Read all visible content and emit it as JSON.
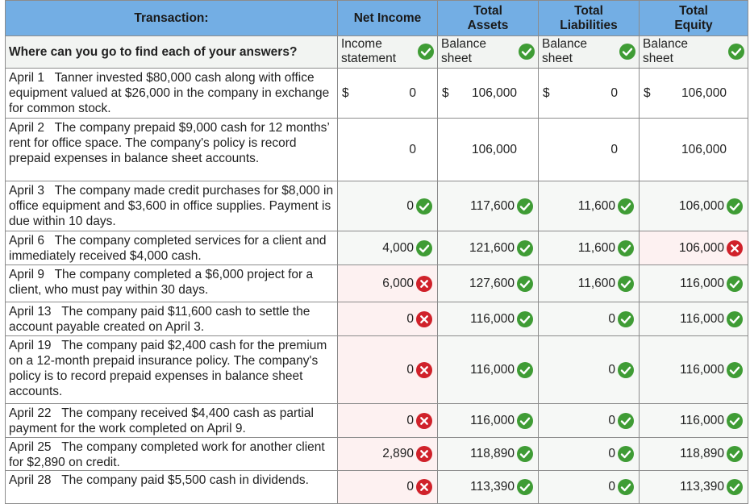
{
  "header": {
    "transaction": "Transaction:",
    "net_income": "Net Income",
    "total_assets": "Total Assets",
    "total_liabilities": "Total Liabilities",
    "total_equity": "Total Equity"
  },
  "source_row": {
    "question": "Where can you go to find each of your answers?",
    "net_income": "Income statement",
    "total_assets": "Balance sheet",
    "total_liabilities": "Balance sheet",
    "total_equity": "Balance sheet"
  },
  "rows": [
    {
      "desc": "April 1   Tanner invested $80,000 cash along with office equipment valued at $26,000 in the company in exchange for common stock.",
      "cells": [
        {
          "v": "0",
          "d": "$",
          "s": "plain"
        },
        {
          "v": "106,000",
          "d": "$",
          "s": "plain"
        },
        {
          "v": "0",
          "d": "$",
          "s": "plain"
        },
        {
          "v": "106,000",
          "d": "$",
          "s": "plain"
        }
      ]
    },
    {
      "desc": "April 2   The company prepaid $9,000 cash for 12 months’ rent for office space. The company's policy is record prepaid expenses in balance sheet accounts.",
      "cells": [
        {
          "v": "0",
          "s": "plain"
        },
        {
          "v": "106,000",
          "s": "plain"
        },
        {
          "v": "0",
          "s": "plain"
        },
        {
          "v": "106,000",
          "s": "plain"
        }
      ]
    },
    {
      "desc": "April 3   The company made credit purchases for $8,000 in office equipment and $3,600 in office supplies. Payment is due within 10 days.",
      "cells": [
        {
          "v": "0",
          "s": "ok"
        },
        {
          "v": "117,600",
          "s": "ok"
        },
        {
          "v": "11,600",
          "s": "ok"
        },
        {
          "v": "106,000",
          "s": "ok"
        }
      ]
    },
    {
      "desc": "April 6   The company completed services for a client and immediately received $4,000 cash.",
      "cells": [
        {
          "v": "4,000",
          "s": "ok"
        },
        {
          "v": "121,600",
          "s": "ok"
        },
        {
          "v": "11,600",
          "s": "ok"
        },
        {
          "v": "106,000",
          "s": "bad"
        }
      ]
    },
    {
      "desc": "April 9   The company completed a $6,000 project for a client, who must pay within 30 days.",
      "cells": [
        {
          "v": "6,000",
          "s": "bad"
        },
        {
          "v": "127,600",
          "s": "ok"
        },
        {
          "v": "11,600",
          "s": "ok"
        },
        {
          "v": "116,000",
          "s": "ok"
        }
      ]
    },
    {
      "desc": "April 13   The company paid $11,600 cash to settle the account payable created on April 3.",
      "cells": [
        {
          "v": "0",
          "s": "bad"
        },
        {
          "v": "116,000",
          "s": "ok"
        },
        {
          "v": "0",
          "s": "ok"
        },
        {
          "v": "116,000",
          "s": "ok"
        }
      ]
    },
    {
      "desc": "April 19   The company paid $2,400 cash for the premium on a 12-month prepaid insurance policy. The company's policy is to record prepaid expenses in balance sheet accounts.",
      "cells": [
        {
          "v": "0",
          "s": "bad"
        },
        {
          "v": "116,000",
          "s": "ok"
        },
        {
          "v": "0",
          "s": "ok"
        },
        {
          "v": "116,000",
          "s": "ok"
        }
      ]
    },
    {
      "desc": "April 22   The company received $4,400 cash as partial payment for the work completed on April 9.",
      "cells": [
        {
          "v": "0",
          "s": "bad"
        },
        {
          "v": "116,000",
          "s": "ok"
        },
        {
          "v": "0",
          "s": "ok"
        },
        {
          "v": "116,000",
          "s": "ok"
        }
      ]
    },
    {
      "desc": "April 25   The company completed work for another client for $2,890 on credit.",
      "cells": [
        {
          "v": "2,890",
          "s": "bad"
        },
        {
          "v": "118,890",
          "s": "ok"
        },
        {
          "v": "0",
          "s": "ok"
        },
        {
          "v": "118,890",
          "s": "ok"
        }
      ]
    },
    {
      "desc": "April 28   The company paid $5,500 cash in dividends.",
      "cells": [
        {
          "v": "0",
          "s": "bad"
        },
        {
          "v": "113,390",
          "s": "ok"
        },
        {
          "v": "0",
          "s": "ok"
        },
        {
          "v": "113,390",
          "s": "ok"
        }
      ]
    }
  ],
  "colors": {
    "header_bg": "#73aee4",
    "correct": "#3f9c35",
    "incorrect": "#d0212a"
  },
  "icons": {
    "correct": "check-icon",
    "incorrect": "cross-icon"
  }
}
